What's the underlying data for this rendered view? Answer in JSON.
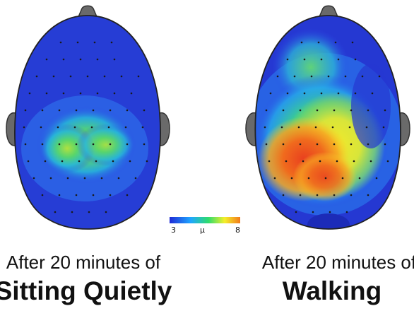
{
  "figure": {
    "panels": [
      {
        "caption_line1": "After 20 minutes of",
        "caption_line2": "Sitting Quietly"
      },
      {
        "caption_line1": "After 20 minutes of",
        "caption_line2": "Walking"
      }
    ],
    "color_scale": {
      "min_label": "3",
      "unit_label": "μ",
      "max_label": "8",
      "colors": [
        "#1f2bd6",
        "#1fa6ff",
        "#2fdc6c",
        "#f4ef2a",
        "#f27a1a"
      ]
    }
  }
}
